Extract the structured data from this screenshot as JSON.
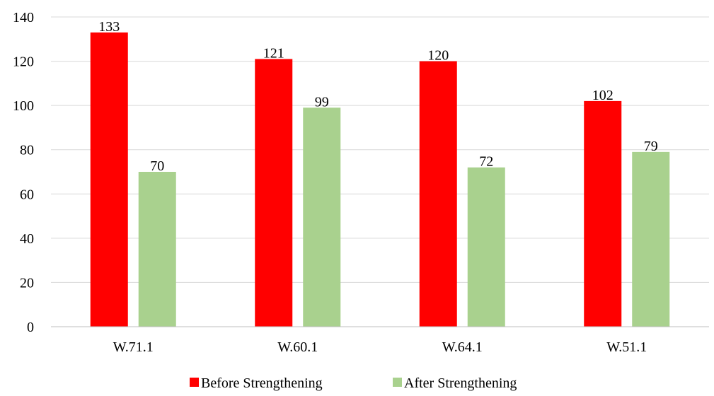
{
  "chart_data": {
    "type": "bar",
    "categories": [
      "W.71.1",
      "W.60.1",
      "W.64.1",
      "W.51.1"
    ],
    "series": [
      {
        "name": "Before Strengthening",
        "values": [
          133,
          121,
          120,
          102
        ],
        "color": "#ff0000"
      },
      {
        "name": "After Strengthening",
        "values": [
          70,
          99,
          72,
          79
        ],
        "color": "#a9d18e"
      }
    ],
    "yticks": [
      0,
      20,
      40,
      60,
      80,
      100,
      120,
      140
    ],
    "ylim": [
      0,
      140
    ],
    "grid": true,
    "legend": "bottom",
    "data_labels": true
  }
}
